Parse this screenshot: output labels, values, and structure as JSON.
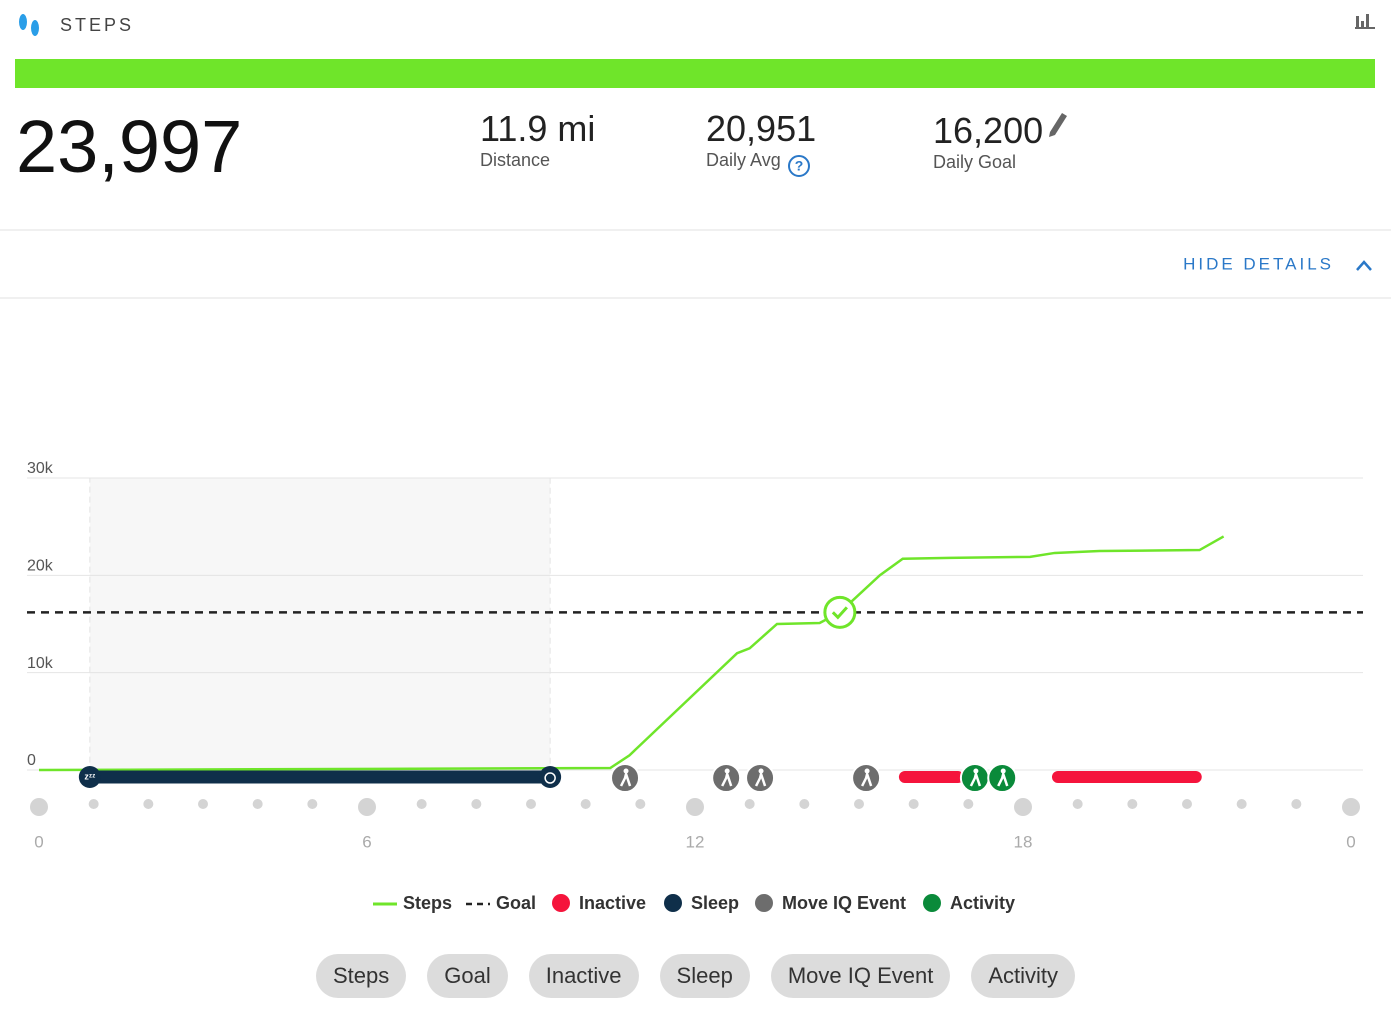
{
  "header": {
    "title": "STEPS",
    "steps": "23,997",
    "toggle": "HIDE DETAILS"
  },
  "stats": [
    {
      "value": "11.9 mi",
      "label": "Distance"
    },
    {
      "value": "20,951",
      "label": "Daily Avg"
    },
    {
      "value": "16,200",
      "label": "Daily Goal"
    }
  ],
  "chart_data": {
    "type": "line",
    "x": [
      0,
      10.45,
      10.8,
      12.77,
      13.0,
      13.5,
      14.28,
      14.65,
      15.38,
      15.8,
      16.66,
      18.13,
      18.58,
      19.4,
      21.23,
      21.67
    ],
    "series": [
      {
        "name": "Steps",
        "color": "#6fe52a",
        "values": [
          0,
          200,
          1500,
          12000,
          12500,
          15000,
          15100,
          16200,
          20000,
          21700,
          21800,
          21900,
          22300,
          22500,
          22600,
          23997
        ]
      }
    ],
    "goal": {
      "name": "Goal",
      "value": 16200,
      "color": "#222222"
    },
    "inactive": {
      "name": "Inactive",
      "color": "#f5143c",
      "ranges": [
        [
          15.84,
          16.81
        ],
        [
          18.64,
          21.16
        ]
      ]
    },
    "sleep": {
      "name": "Sleep",
      "color": "#0f2f4a",
      "start": 0.93,
      "end": 9.35
    },
    "move_iq": {
      "name": "Move IQ Event",
      "color": "#6d6d6d",
      "times": [
        10.72,
        12.57,
        13.19,
        15.13
      ]
    },
    "activity": {
      "name": "Activity",
      "color": "#0a8a3a",
      "times": [
        17.12,
        17.62
      ]
    },
    "xlim": [
      0,
      24
    ],
    "xticks": [
      0,
      6,
      12,
      18,
      {
        "value": 24,
        "label": "0"
      }
    ],
    "ylim": [
      0,
      30000
    ],
    "yticks": [
      0,
      {
        "value": 10000,
        "label": "10k"
      },
      {
        "value": 20000,
        "label": "20k"
      },
      {
        "value": 30000,
        "label": "30k"
      }
    ],
    "grid": true
  }
}
